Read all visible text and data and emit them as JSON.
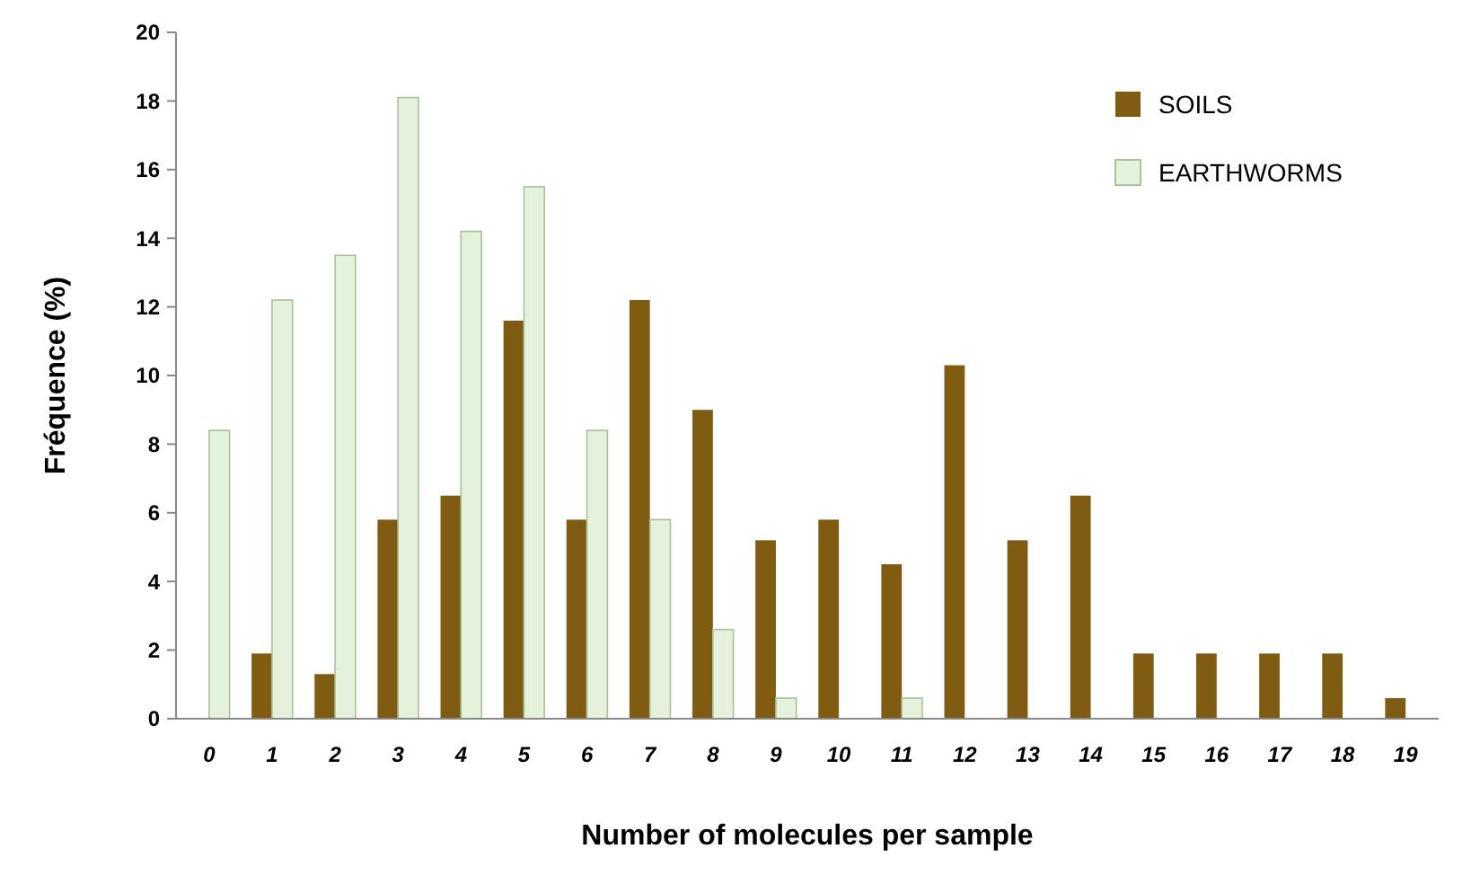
{
  "chart_data": {
    "type": "bar",
    "xlabel": "Number of molecules per sample",
    "ylabel": "Fréquence (%)",
    "categories": [
      "0",
      "1",
      "2",
      "3",
      "4",
      "5",
      "6",
      "7",
      "8",
      "9",
      "10",
      "11",
      "12",
      "13",
      "14",
      "15",
      "16",
      "17",
      "18",
      "19"
    ],
    "series": [
      {
        "name": "SOILS",
        "color": "#7f5c12",
        "values": [
          0,
          1.9,
          1.3,
          5.8,
          6.5,
          11.6,
          5.8,
          12.2,
          9.0,
          5.2,
          5.8,
          4.5,
          10.3,
          5.2,
          6.5,
          1.9,
          1.9,
          1.9,
          1.9,
          0.6
        ]
      },
      {
        "name": "EARTHWORMS",
        "color": "#e4f2dc",
        "values": [
          8.4,
          12.2,
          13.5,
          18.1,
          14.2,
          15.5,
          8.4,
          5.8,
          2.6,
          0.6,
          0,
          0.6,
          0,
          0,
          0,
          0,
          0,
          0,
          0,
          0
        ]
      }
    ],
    "ylim": [
      0,
      20
    ],
    "yticks": [
      0,
      2,
      4,
      6,
      8,
      10,
      12,
      14,
      16,
      18,
      20
    ],
    "grid": false,
    "legend": "top right"
  }
}
